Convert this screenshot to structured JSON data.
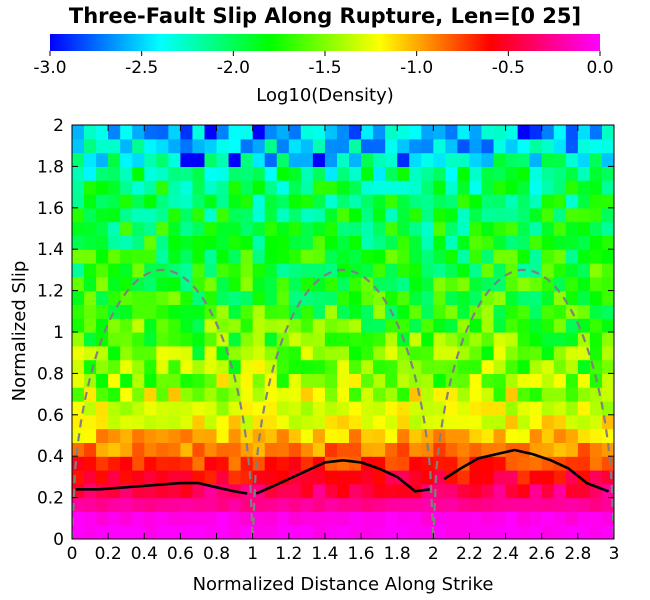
{
  "chart_data": {
    "type": "heatmap",
    "title": "Three-Fault Slip Along Rupture, Len=[0 25]",
    "xlabel": "Normalized Distance Along Strike",
    "ylabel": "Normalized Slip",
    "xlim": [
      0,
      3
    ],
    "ylim": [
      0,
      2
    ],
    "x_ticks": [
      0,
      0.2,
      0.4,
      0.6,
      0.8,
      1,
      1.2,
      1.4,
      1.6,
      1.8,
      2,
      2.2,
      2.4,
      2.6,
      2.8,
      3
    ],
    "x_tick_labels": [
      "0",
      "0.2",
      "0.4",
      "0.6",
      "0.8",
      "1",
      "1.2",
      "1.4",
      "1.6",
      "1.8",
      "2",
      "2.2",
      "2.4",
      "2.6",
      "2.8",
      "3"
    ],
    "y_ticks": [
      0,
      0.2,
      0.4,
      0.6,
      0.8,
      1,
      1.2,
      1.4,
      1.6,
      1.8,
      2
    ],
    "y_tick_labels": [
      "0",
      "0.2",
      "0.4",
      "0.6",
      "0.8",
      "1",
      "1.2",
      "1.4",
      "1.6",
      "1.8",
      "2"
    ],
    "grid": false,
    "colorbar": {
      "label": "Log10(Density)",
      "range": [
        -3,
        0
      ],
      "ticks": [
        -3,
        -2.5,
        -2,
        -1.5,
        -1,
        -0.5,
        0
      ],
      "tick_labels": [
        "-3.0",
        "-2.5",
        "-2.0",
        "-1.5",
        "-1.0",
        "-0.5",
        "0.0"
      ],
      "placement": "top",
      "colors": [
        "#0000ff",
        "#00ffff",
        "#00ff00",
        "#ffff00",
        "#ff0000",
        "#ff00ff"
      ]
    },
    "heatmap": {
      "x_bin_count": 45,
      "y_bin_count": 30,
      "x_bin_width": 0.0667,
      "y_bin_width": 0.0667,
      "row_mean_log10_density": [
        -0.02,
        -0.05,
        -0.25,
        -0.4,
        -0.55,
        -0.72,
        -0.9,
        -1.05,
        -1.2,
        -1.3,
        -1.38,
        -1.45,
        -1.52,
        -1.58,
        -1.62,
        -1.66,
        -1.7,
        -1.75,
        -1.8,
        -1.83,
        -1.86,
        -1.9,
        -1.93,
        -1.96,
        -2.0,
        -2.02,
        -2.1,
        -2.25,
        -2.45,
        -2.55
      ]
    },
    "series": [
      {
        "style": "solid-black",
        "segments": [
          {
            "x": [
              0.02,
              0.15,
              0.3,
              0.45,
              0.6,
              0.7,
              0.8,
              0.9,
              0.97
            ],
            "y": [
              0.24,
              0.24,
              0.25,
              0.26,
              0.27,
              0.27,
              0.25,
              0.23,
              0.22
            ]
          },
          {
            "x": [
              1.02,
              1.1,
              1.2,
              1.3,
              1.4,
              1.5,
              1.6,
              1.7,
              1.8,
              1.9,
              1.98
            ],
            "y": [
              0.22,
              0.25,
              0.29,
              0.33,
              0.37,
              0.38,
              0.37,
              0.34,
              0.3,
              0.23,
              0.24
            ]
          },
          {
            "x": [
              2.06,
              2.15,
              2.25,
              2.35,
              2.45,
              2.55,
              2.65,
              2.75,
              2.85,
              2.97
            ],
            "y": [
              0.29,
              0.34,
              0.39,
              0.41,
              0.43,
              0.41,
              0.38,
              0.34,
              0.27,
              0.23
            ]
          }
        ]
      },
      {
        "style": "dashed-gray",
        "segments": [
          {
            "x_start": 0,
            "x_end": 1,
            "peak": 1.3
          },
          {
            "x_start": 1,
            "x_end": 2,
            "peak": 1.3
          },
          {
            "x_start": 2,
            "x_end": 3,
            "peak": 1.3
          }
        ]
      }
    ]
  }
}
